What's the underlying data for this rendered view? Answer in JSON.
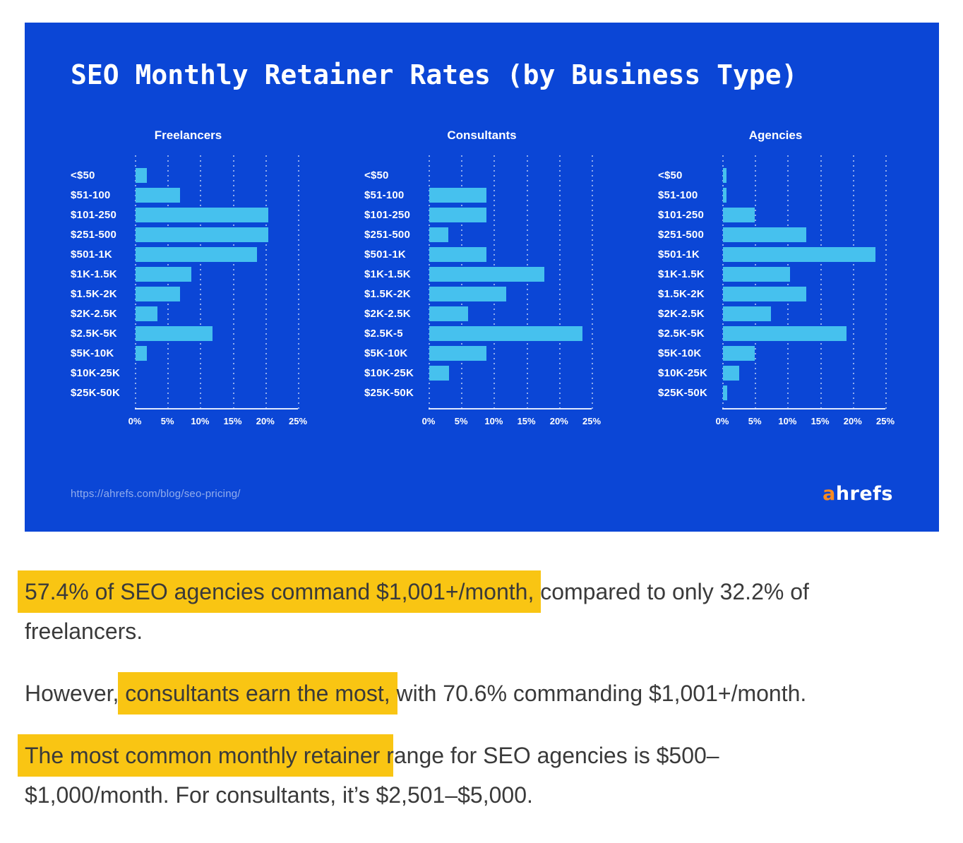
{
  "card": {
    "title": "SEO Monthly Retainer Rates (by Business Type)",
    "background": "#0b46d6",
    "bar_color": "#46c1ee",
    "source_url": "https://ahrefs.com/blog/seo-pricing/",
    "logo": {
      "prefix": "a",
      "suffix": "hrefs",
      "prefix_color": "#f98a20"
    }
  },
  "chart_data": {
    "type": "bar",
    "orientation": "horizontal",
    "title": "SEO Monthly Retainer Rates (by Business Type)",
    "value_unit": "%",
    "xlim": [
      0,
      25
    ],
    "x_tick_labels": [
      "0%",
      "5%",
      "10%",
      "15%",
      "20%",
      "25%"
    ],
    "grid": "dotted-vertical",
    "legend": "none",
    "charts": [
      {
        "title": "Freelancers",
        "categories": [
          "<$50",
          "$51-100",
          "$101-250",
          "$251-500",
          "$501-1K",
          "$1K-1.5K",
          "$1.5K-2K",
          "$2K-2.5K",
          "$2.5K-5K",
          "$5K-10K",
          "$10K-25K",
          "$25K-50K"
        ],
        "values": [
          1.7,
          6.8,
          20.3,
          20.3,
          18.6,
          8.5,
          6.8,
          3.4,
          11.8,
          1.7,
          0,
          0
        ]
      },
      {
        "title": "Consultants",
        "categories": [
          "<$50",
          "$51-100",
          "$101-250",
          "$251-500",
          "$501-1K",
          "$1K-1.5K",
          "$1.5K-2K",
          "$2K-2.5K",
          "$2.5K-5",
          "$5K-10K",
          "$10K-25K",
          "$25K-50K"
        ],
        "values": [
          0,
          8.8,
          8.8,
          2.9,
          8.8,
          17.6,
          11.8,
          5.9,
          23.5,
          8.8,
          3.0,
          0
        ]
      },
      {
        "title": "Agencies",
        "categories": [
          "<$50",
          "$51-100",
          "$101-250",
          "$251-500",
          "$501-1K",
          "$1K-1.5K",
          "$1.5K-2K",
          "$2K-2.5K",
          "$2.5K-5K",
          "$5K-10K",
          "$10K-25K",
          "$25K-50K"
        ],
        "values": [
          0.5,
          0.5,
          4.9,
          12.8,
          23.4,
          10.3,
          12.8,
          7.4,
          18.9,
          4.9,
          2.5,
          0.6
        ]
      }
    ]
  },
  "article": {
    "highlight_color": "#f9c513",
    "paragraphs": [
      {
        "segments": [
          {
            "text": "57.4% of SEO agencies command $1,001+/month,",
            "highlight": true
          },
          {
            "text": " compared to only 32.2% of freelancers.",
            "highlight": false
          }
        ]
      },
      {
        "segments": [
          {
            "text": "However, ",
            "highlight": false
          },
          {
            "text": "consultants earn the most,",
            "highlight": true
          },
          {
            "text": " with 70.6% commanding $1,001+/month.",
            "highlight": false
          }
        ]
      },
      {
        "segments": [
          {
            "text": "The most common monthly retainer ",
            "highlight": true
          },
          {
            "text": "range for SEO agencies is $500–$1,000/month. For consultants, it’s $2,501–$5,000.",
            "highlight": false
          }
        ]
      }
    ]
  }
}
